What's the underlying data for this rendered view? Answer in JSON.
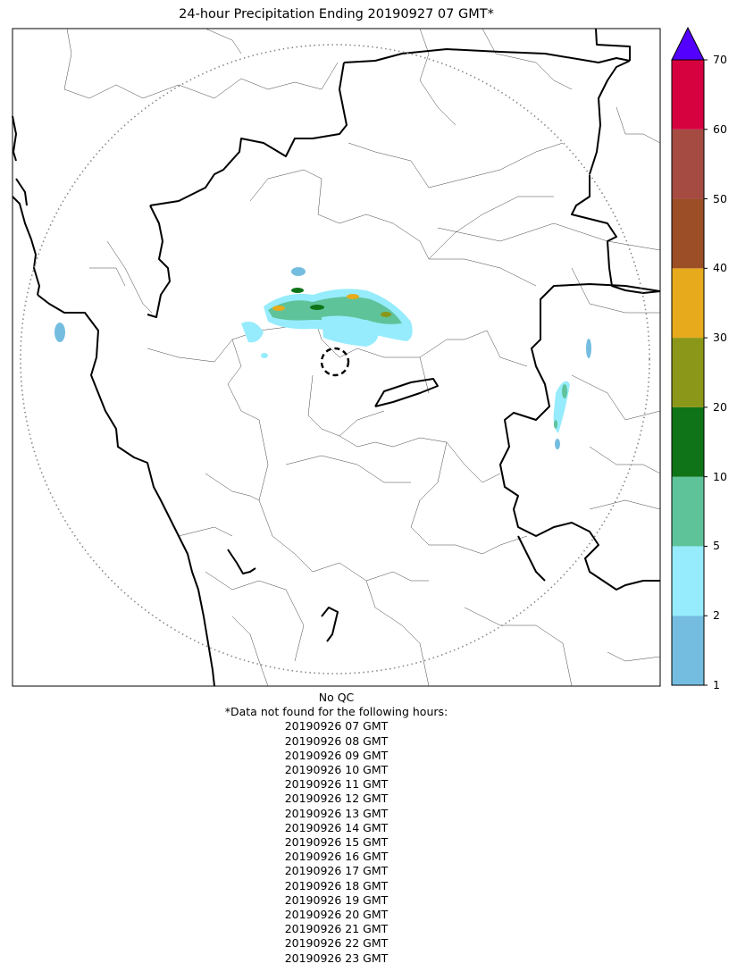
{
  "title": "24-hour Precipitation Ending 20190927 07 GMT*",
  "colorbar": {
    "ticks": [
      "1",
      "2",
      "5",
      "10",
      "20",
      "30",
      "40",
      "50",
      "60",
      "70"
    ],
    "colors": [
      "#74bde0",
      "#96ecfc",
      "#5fc39a",
      "#0e7417",
      "#8a9718",
      "#e6aa1c",
      "#9c4e26",
      "#a54b42",
      "#d6023f"
    ],
    "extend_color": "#5400ff"
  },
  "notes": {
    "qc": "No QC",
    "missing_header": "*Data not found for the following hours:",
    "missing_hours": [
      "20190926 07 GMT",
      "20190926 08 GMT",
      "20190926 09 GMT",
      "20190926 10 GMT",
      "20190926 11 GMT",
      "20190926 12 GMT",
      "20190926 13 GMT",
      "20190926 14 GMT",
      "20190926 15 GMT",
      "20190926 16 GMT",
      "20190926 17 GMT",
      "20190926 18 GMT",
      "20190926 19 GMT",
      "20190926 20 GMT",
      "20190926 21 GMT",
      "20190926 22 GMT",
      "20190926 23 GMT"
    ]
  }
}
